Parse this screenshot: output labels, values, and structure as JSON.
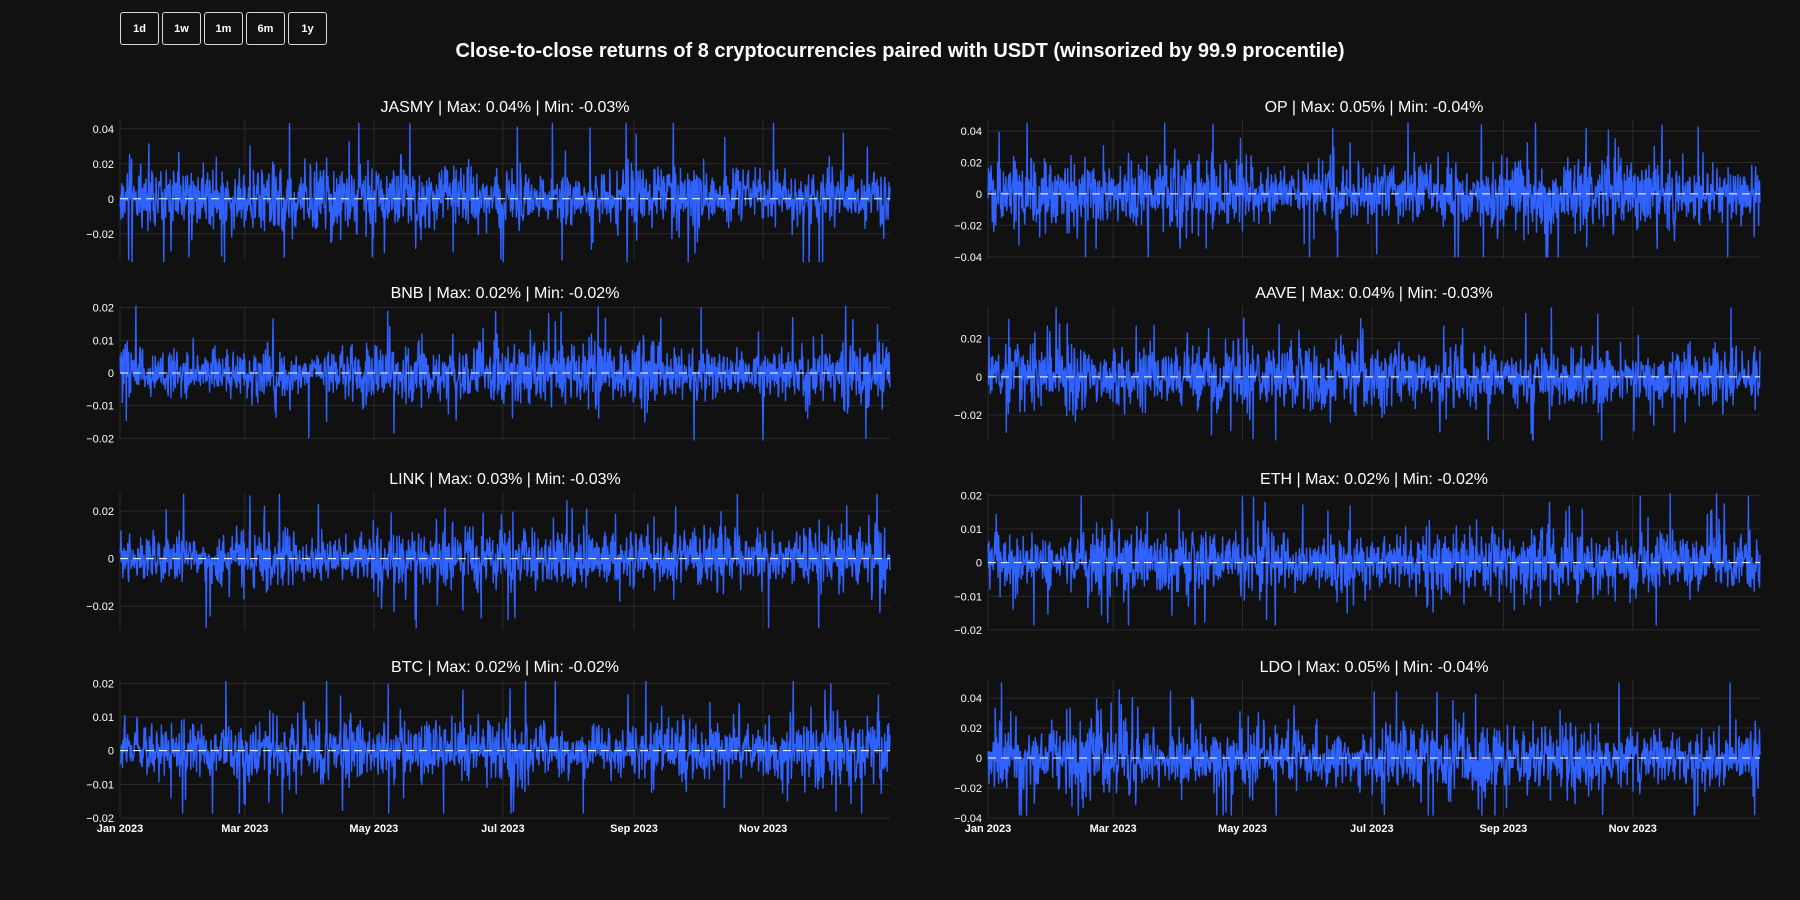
{
  "title": "Close-to-close returns of 8 cryptocurrencies paired with USDT (winsorized by 99.9 procentile)",
  "range_buttons": [
    "1d",
    "1w",
    "1m",
    "6m",
    "1y"
  ],
  "colors": {
    "background": "#111111",
    "line": "#2f62ff",
    "zero_line": "#ffffff",
    "grid": "#2b2b2b"
  },
  "chart_data": [
    {
      "type": "line",
      "title": "JASMY | Max: 0.04% | Min: -0.03%",
      "series": [
        {
          "name": "JASMY"
        }
      ],
      "ylim": [
        -0.035,
        0.045
      ],
      "yticks": [
        0.04,
        0.02,
        0,
        -0.02
      ],
      "ytick_labels": [
        "0.04",
        "0.02",
        "0",
        "−0.02"
      ],
      "clip": [
        -0.036,
        0.043
      ],
      "xlim": [
        "2023-01-01",
        "2023-12-31"
      ],
      "show_xticks": false
    },
    {
      "type": "line",
      "title": "OP | Max: 0.05% | Min: -0.04%",
      "series": [
        {
          "name": "OP"
        }
      ],
      "ylim": [
        -0.042,
        0.047
      ],
      "yticks": [
        0.04,
        0.02,
        0,
        -0.02,
        -0.04
      ],
      "ytick_labels": [
        "0.04",
        "0.02",
        "0",
        "−0.02",
        "−0.04"
      ],
      "clip": [
        -0.04,
        0.045
      ],
      "xlim": [
        "2023-01-01",
        "2023-12-31"
      ],
      "show_xticks": false
    },
    {
      "type": "line",
      "title": "BNB | Max: 0.02% | Min: -0.02%",
      "series": [
        {
          "name": "BNB"
        }
      ],
      "ylim": [
        -0.0205,
        0.0205
      ],
      "yticks": [
        0.02,
        0.01,
        0,
        -0.01,
        -0.02
      ],
      "ytick_labels": [
        "0.02",
        "0.01",
        "0",
        "−0.01",
        "−0.02"
      ],
      "clip": [
        -0.0205,
        0.0205
      ],
      "xlim": [
        "2023-01-01",
        "2023-12-31"
      ],
      "show_xticks": false
    },
    {
      "type": "line",
      "title": "AAVE | Max: 0.04% | Min: -0.03%",
      "series": [
        {
          "name": "AAVE"
        }
      ],
      "ylim": [
        -0.033,
        0.037
      ],
      "yticks": [
        0.02,
        0,
        -0.02
      ],
      "ytick_labels": [
        "0.02",
        "0",
        "−0.02"
      ],
      "clip": [
        -0.033,
        0.036
      ],
      "xlim": [
        "2023-01-01",
        "2023-12-31"
      ],
      "show_xticks": false
    },
    {
      "type": "line",
      "title": "LINK | Max: 0.03% | Min: -0.03%",
      "series": [
        {
          "name": "LINK"
        }
      ],
      "ylim": [
        -0.03,
        0.028
      ],
      "yticks": [
        0.02,
        0,
        -0.02
      ],
      "ytick_labels": [
        "0.02",
        "0",
        "−0.02"
      ],
      "clip": [
        -0.029,
        0.027
      ],
      "xlim": [
        "2023-01-01",
        "2023-12-31"
      ],
      "show_xticks": false
    },
    {
      "type": "line",
      "title": "ETH | Max: 0.02% | Min: -0.02%",
      "series": [
        {
          "name": "ETH"
        }
      ],
      "ylim": [
        -0.02,
        0.021
      ],
      "yticks": [
        0.02,
        0.01,
        0,
        -0.01,
        -0.02
      ],
      "ytick_labels": [
        "0.02",
        "0.01",
        "0",
        "−0.01",
        "−0.02"
      ],
      "clip": [
        -0.0185,
        0.0205
      ],
      "xlim": [
        "2023-01-01",
        "2023-12-31"
      ],
      "show_xticks": false
    },
    {
      "type": "line",
      "title": "BTC | Max: 0.02% | Min: -0.02%",
      "series": [
        {
          "name": "BTC"
        }
      ],
      "ylim": [
        -0.02,
        0.021
      ],
      "yticks": [
        0.02,
        0.01,
        0,
        -0.01,
        -0.02
      ],
      "ytick_labels": [
        "0.02",
        "0.01",
        "0",
        "−0.01",
        "−0.02"
      ],
      "clip": [
        -0.0185,
        0.0205
      ],
      "xlim": [
        "2023-01-01",
        "2023-12-31"
      ],
      "show_xticks": true
    },
    {
      "type": "line",
      "title": "LDO | Max: 0.05% | Min: -0.04%",
      "series": [
        {
          "name": "LDO"
        }
      ],
      "ylim": [
        -0.04,
        0.052
      ],
      "yticks": [
        0.04,
        0.02,
        0,
        -0.02,
        -0.04
      ],
      "ytick_labels": [
        "0.04",
        "0.02",
        "0",
        "−0.02",
        "−0.04"
      ],
      "clip": [
        -0.038,
        0.05
      ],
      "xlim": [
        "2023-01-01",
        "2023-12-31"
      ],
      "show_xticks": true
    }
  ],
  "x_axis": {
    "ticks": [
      "2023-01-01",
      "2023-03-01",
      "2023-05-01",
      "2023-07-01",
      "2023-09-01",
      "2023-11-01"
    ],
    "tick_labels": [
      "Jan 2023",
      "Mar 2023",
      "May 2023",
      "Jul 2023",
      "Sep 2023",
      "Nov 2023"
    ]
  }
}
